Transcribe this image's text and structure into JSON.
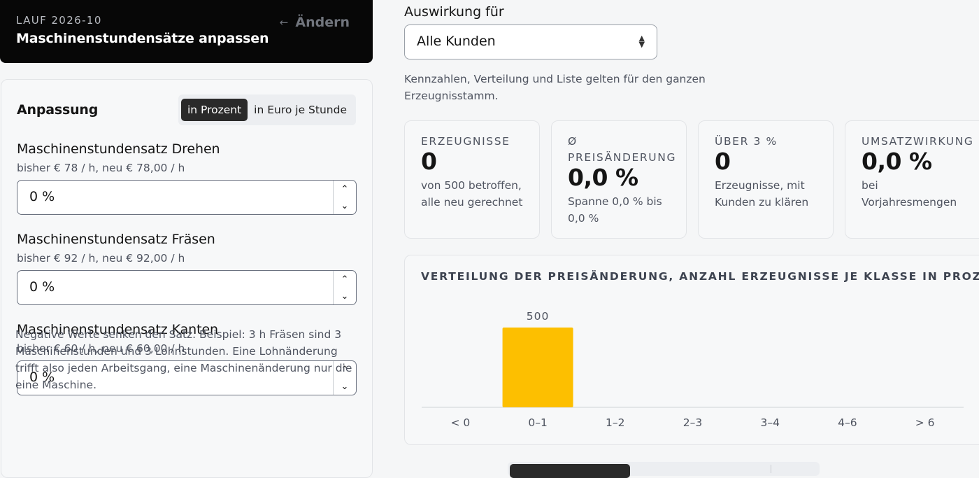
{
  "header": {
    "run_label": "LAUF 2026-10",
    "title": "Maschinenstundensätze anpassen",
    "change_label": "Ändern"
  },
  "adjust": {
    "title": "Anpassung",
    "mode_percent": "in Prozent",
    "mode_euro": "in Euro je Stunde",
    "fields": [
      {
        "label": "Maschinenstundensatz Drehen",
        "sub": "bisher € 78 / h, neu € 78,00 / h",
        "value": "0 %"
      },
      {
        "label": "Maschinenstundensatz Fräsen",
        "sub": "bisher € 92 / h, neu € 92,00 / h",
        "value": "0 %"
      },
      {
        "label": "Maschinenstundensatz Kanten",
        "sub": "bisher € 60 / h, neu € 60,00 / h",
        "value": "0 %"
      }
    ],
    "note": "Negative Werte senken den Satz. Beispiel: 3 h Fräsen sind 3 Maschinenstunden und 3 Lohnstunden. Eine Lohnänderung trifft also jeden Arbeitsgang, eine Maschinenänderung nur die eine Maschine."
  },
  "scope": {
    "label": "Auswirkung für",
    "selected": "Alle Kunden",
    "hint": "Kennzahlen, Verteilung und Liste gelten für den ganzen Erzeugnisstamm."
  },
  "kpis": [
    {
      "head": "ERZEUGNISSE",
      "value": "0",
      "desc": "von 500 betroffen, alle neu gerechnet"
    },
    {
      "head": "Ø PREISÄNDERUNG",
      "value": "0,0 %",
      "desc": "Spanne 0,0 % bis 0,0 %"
    },
    {
      "head": "ÜBER 3 %",
      "value": "0",
      "desc": "Erzeugnisse, mit Kunden zu klären"
    },
    {
      "head": "UMSATZWIRKUNG",
      "value": "0,0 %",
      "desc": "bei Vorjahresmengen"
    }
  ],
  "chart_data": {
    "type": "bar",
    "title": "VERTEILUNG DER PREISÄNDERUNG, ANZAHL ERZEUGNISSE JE KLASSE IN PROZENT",
    "categories": [
      "< 0",
      "0–1",
      "1–2",
      "2–3",
      "3–4",
      "4–6",
      "> 6"
    ],
    "values": [
      0,
      500,
      0,
      0,
      0,
      0,
      0
    ],
    "data_labels": [
      "",
      "500",
      "",
      "",
      "",
      "",
      ""
    ],
    "bar_color": "#fdbf00",
    "xlabel": "",
    "ylabel": "",
    "ylim": [
      0,
      500
    ],
    "grid": false
  }
}
